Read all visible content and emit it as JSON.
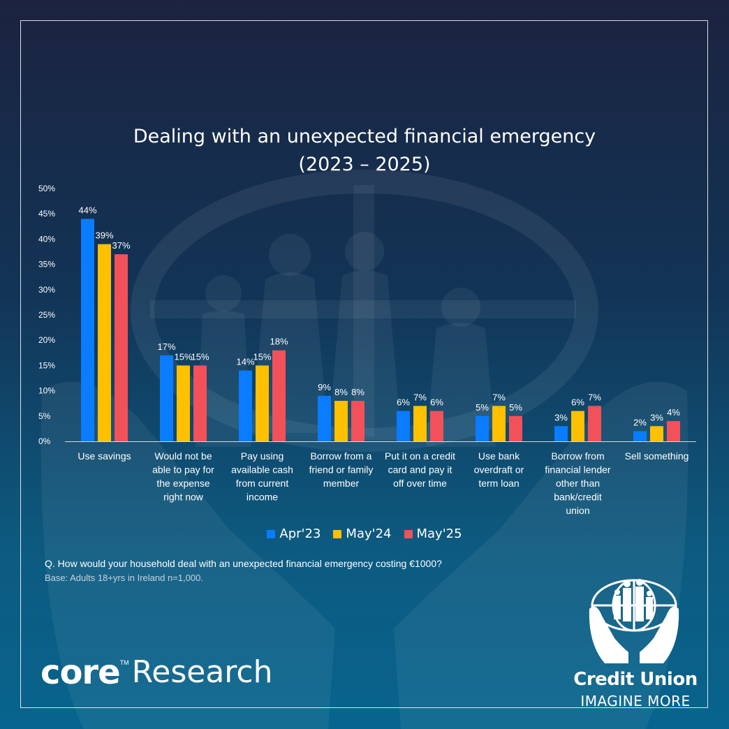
{
  "colors": {
    "apr23": "#0a7cff",
    "may24": "#ffc000",
    "may25": "#f2515a"
  },
  "question": "Q. How would your household deal with an unexpected financial emergency costing €1000?",
  "base": "Base: Adults 18+yrs in Ireland n=1,000.",
  "brand_left": {
    "word": "core",
    "tm": "TM",
    "rest": "Research"
  },
  "brand_right": {
    "name": "Credit Union",
    "tagline": "IMAGINE MORE"
  },
  "chart_data": {
    "type": "bar",
    "title": "Dealing with an unexpected financial emergency",
    "subtitle": "(2023 – 2025)",
    "xlabel": "",
    "ylabel": "",
    "ylim": [
      0,
      50
    ],
    "yticks": [
      "0%",
      "5%",
      "10%",
      "15%",
      "20%",
      "25%",
      "30%",
      "35%",
      "40%",
      "45%",
      "50%"
    ],
    "grid": false,
    "legend_position": "bottom",
    "categories": [
      [
        "Use savings"
      ],
      [
        "Would not be",
        "able to pay for",
        "the expense",
        "right now"
      ],
      [
        "Pay using",
        "available cash",
        "from current",
        "income"
      ],
      [
        "Borrow from a",
        "friend or family",
        "member"
      ],
      [
        "Put it on a credit",
        "card and pay it",
        "off over time"
      ],
      [
        "Use bank",
        "overdraft or",
        "term loan"
      ],
      [
        "Borrow from",
        "financial lender",
        "other than",
        "bank/credit",
        "union"
      ],
      [
        "Sell something"
      ]
    ],
    "series": [
      {
        "name": "Apr'23",
        "color": "#0a7cff",
        "values": [
          44,
          17,
          14,
          9,
          6,
          5,
          3,
          2
        ],
        "labels": [
          "44%",
          "17%",
          "14%",
          "9%",
          "6%",
          "5%",
          "3%",
          "2%"
        ]
      },
      {
        "name": "May'24",
        "color": "#ffc000",
        "values": [
          39,
          15,
          15,
          8,
          7,
          7,
          6,
          3
        ],
        "labels": [
          "39%",
          "15%",
          "15%",
          "8%",
          "7%",
          "7%",
          "6%",
          "3%"
        ]
      },
      {
        "name": "May'25",
        "color": "#f2515a",
        "values": [
          37,
          15,
          18,
          8,
          6,
          5,
          7,
          4
        ],
        "labels": [
          "37%",
          "15%",
          "18%",
          "8%",
          "6%",
          "5%",
          "7%",
          "4%"
        ]
      }
    ]
  }
}
